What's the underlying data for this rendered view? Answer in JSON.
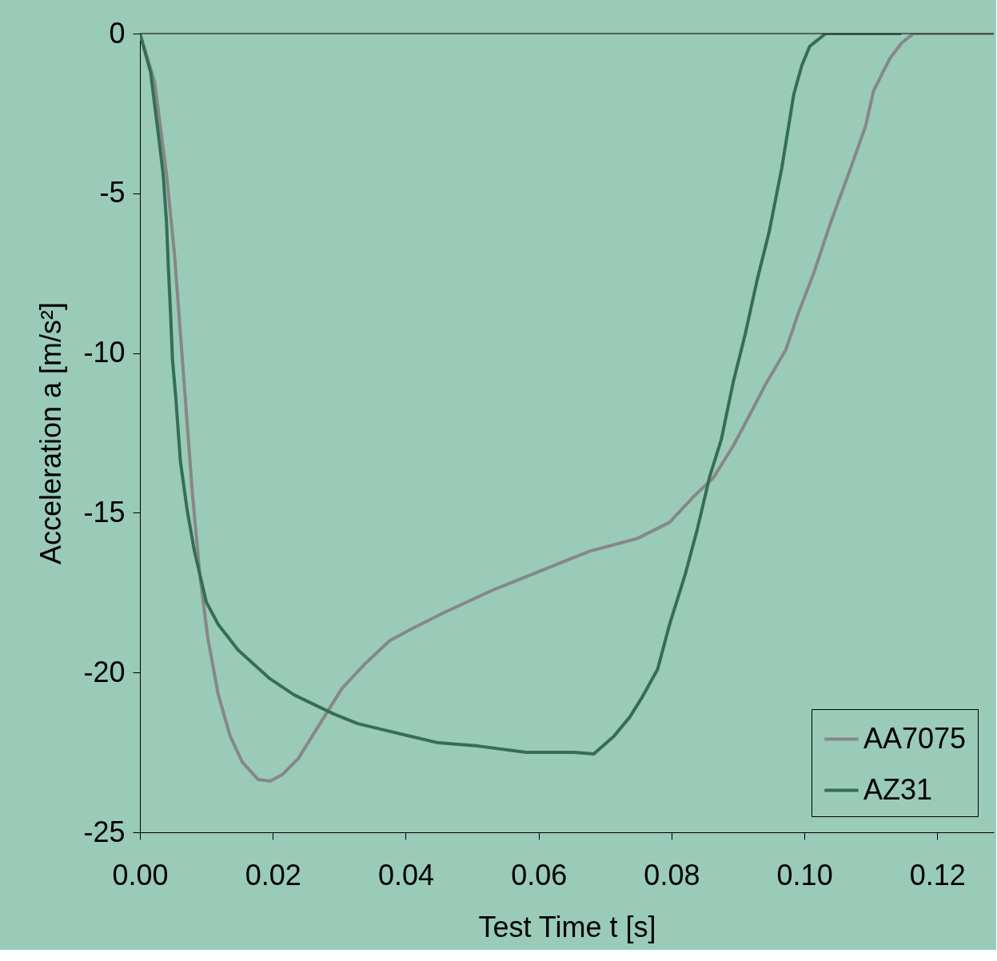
{
  "chart_data": {
    "type": "line",
    "xlabel": "Test Time t [s]",
    "ylabel": "Acceleration a [m/s²]",
    "xlim": [
      0,
      0.1285
    ],
    "ylim": [
      -25,
      0
    ],
    "xticks": [
      {
        "value": 0,
        "label": "0.00"
      },
      {
        "value": 0.02,
        "label": "0.02"
      },
      {
        "value": 0.04,
        "label": "0.04"
      },
      {
        "value": 0.06,
        "label": "0.06"
      },
      {
        "value": 0.08,
        "label": "0.08"
      },
      {
        "value": 0.1,
        "label": "0.10"
      },
      {
        "value": 0.12,
        "label": "0.12"
      }
    ],
    "yticks": [
      0,
      -5,
      -10,
      -15,
      -20,
      -25
    ],
    "grid": false,
    "legend": "bottom right",
    "marker": "none",
    "line_style": "solid",
    "series": [
      {
        "name": "AA7075",
        "color": "#878787",
        "x": [
          0,
          0.0022,
          0.004,
          0.0052,
          0.0061,
          0.007,
          0.0079,
          0.009,
          0.0102,
          0.0118,
          0.0136,
          0.0154,
          0.0178,
          0.0196,
          0.0214,
          0.0238,
          0.0268,
          0.0304,
          0.034,
          0.0376,
          0.0412,
          0.046,
          0.0533,
          0.0605,
          0.0677,
          0.0749,
          0.0797,
          0.0833,
          0.0863,
          0.0893,
          0.0911,
          0.0941,
          0.0972,
          0.099,
          0.1014,
          0.1038,
          0.1068,
          0.1092,
          0.1104,
          0.1128,
          0.1146,
          0.1164,
          0.12,
          0.1285
        ],
        "values": [
          0,
          -1.5,
          -4.4,
          -6.9,
          -9.4,
          -11.9,
          -14.4,
          -16.9,
          -18.9,
          -20.7,
          -22.0,
          -22.8,
          -23.35,
          -23.4,
          -23.2,
          -22.7,
          -21.7,
          -20.5,
          -19.7,
          -19.0,
          -18.6,
          -18.1,
          -17.4,
          -16.8,
          -16.2,
          -15.8,
          -15.3,
          -14.5,
          -13.9,
          -12.9,
          -12.2,
          -11.0,
          -9.9,
          -8.8,
          -7.5,
          -6.0,
          -4.3,
          -2.9,
          -1.8,
          -0.8,
          -0.3,
          0,
          0,
          0
        ]
      },
      {
        "name": "AZ31",
        "color": "#356e57",
        "x": [
          0,
          0.0016,
          0.0028,
          0.0035,
          0.004,
          0.0043,
          0.0046,
          0.0049,
          0.0054,
          0.0061,
          0.0071,
          0.0082,
          0.01,
          0.0118,
          0.0148,
          0.0196,
          0.0232,
          0.0292,
          0.0328,
          0.0388,
          0.0449,
          0.0509,
          0.0581,
          0.0653,
          0.0683,
          0.0713,
          0.0737,
          0.0755,
          0.0779,
          0.0797,
          0.0821,
          0.0839,
          0.0857,
          0.0875,
          0.0893,
          0.0911,
          0.0929,
          0.0947,
          0.0966,
          0.0984,
          0.0996,
          0.1008,
          0.1032,
          0.1146
        ],
        "values": [
          0,
          -1.2,
          -3.2,
          -4.4,
          -5.9,
          -7.4,
          -8.7,
          -10.2,
          -11.4,
          -13.4,
          -14.9,
          -16.2,
          -17.8,
          -18.5,
          -19.3,
          -20.2,
          -20.7,
          -21.3,
          -21.6,
          -21.9,
          -22.2,
          -22.3,
          -22.5,
          -22.5,
          -22.55,
          -22.0,
          -21.4,
          -20.8,
          -19.9,
          -18.5,
          -16.9,
          -15.5,
          -13.9,
          -12.7,
          -10.9,
          -9.4,
          -7.7,
          -6.2,
          -4.2,
          -1.9,
          -1.0,
          -0.4,
          0,
          0
        ]
      }
    ]
  }
}
